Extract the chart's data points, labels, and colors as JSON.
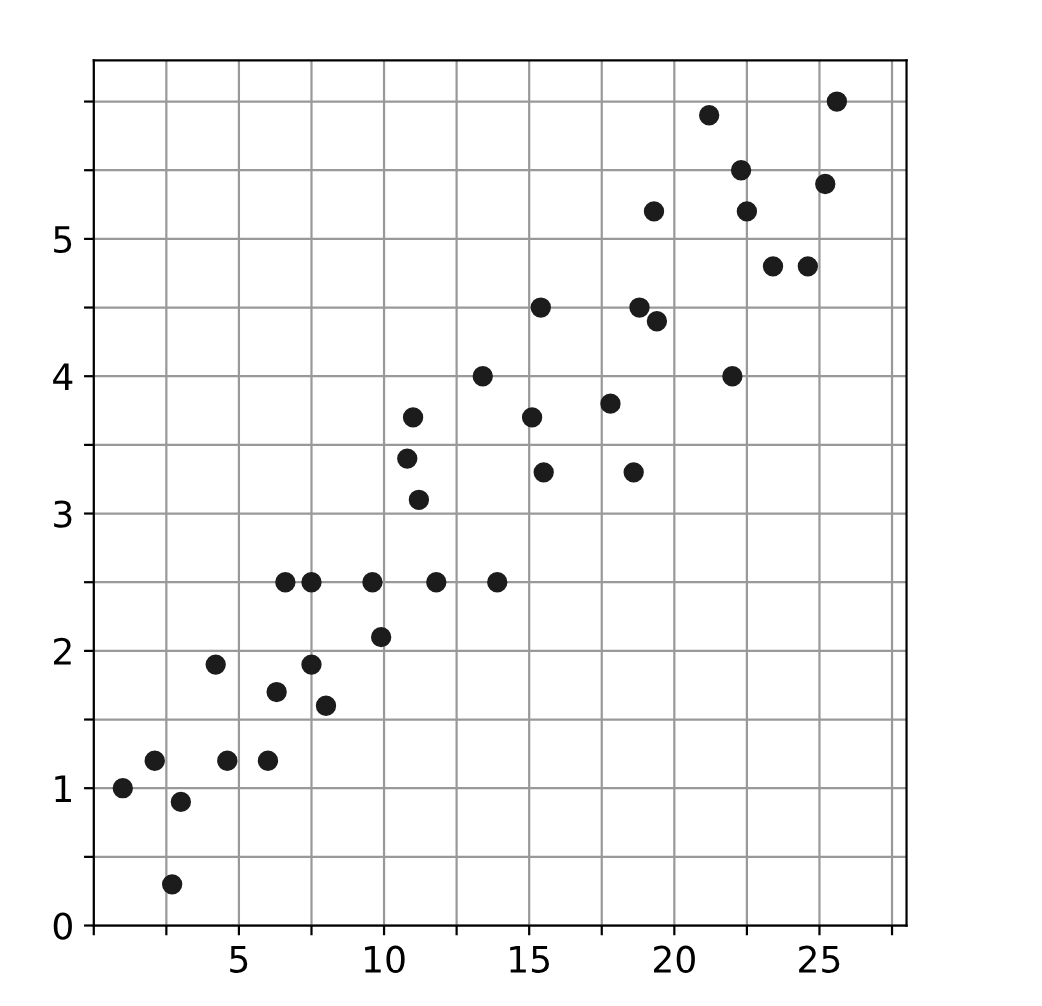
{
  "chart_data": {
    "type": "scatter",
    "color": "#1c1c1c",
    "marker": "circle",
    "grid": true,
    "x": [
      2.7,
      1.0,
      2.1,
      3.0,
      4.6,
      6.0,
      4.2,
      6.3,
      7.5,
      8.0,
      6.6,
      7.5,
      9.6,
      9.9,
      11.8,
      13.9,
      11.2,
      10.8,
      11.0,
      13.4,
      15.5,
      15.1,
      17.8,
      18.6,
      15.4,
      18.8,
      19.4,
      19.3,
      22.0,
      21.2,
      22.3,
      22.5,
      23.4,
      24.6,
      25.2,
      25.6
    ],
    "values": [
      0.3,
      1.0,
      1.2,
      0.9,
      1.2,
      1.2,
      1.9,
      1.7,
      1.9,
      1.6,
      2.5,
      2.5,
      2.5,
      2.1,
      2.5,
      2.5,
      3.1,
      3.4,
      3.7,
      4.0,
      3.3,
      3.7,
      3.8,
      3.3,
      4.5,
      4.5,
      4.4,
      5.2,
      4.0,
      5.9,
      5.5,
      5.2,
      4.8,
      4.8,
      5.4,
      6.0
    ],
    "xlim": [
      0,
      28
    ],
    "ylim": [
      0,
      6.3
    ],
    "xticks": [
      {
        "value": 0,
        "label": null
      },
      {
        "value": 2.5,
        "label": null
      },
      5,
      {
        "value": 7.5,
        "label": null
      },
      10,
      {
        "value": 12.5,
        "label": null
      },
      15,
      {
        "value": 17.5,
        "label": null
      },
      20,
      {
        "value": 22.5,
        "label": null
      },
      25,
      {
        "value": 27.5,
        "label": null
      }
    ],
    "yticks": [
      0,
      {
        "value": 0.5,
        "label": null
      },
      1,
      {
        "value": 1.5,
        "label": null
      },
      2,
      {
        "value": 2.5,
        "label": null
      },
      3,
      {
        "value": 3.5,
        "label": null
      },
      4,
      {
        "value": 4.5,
        "label": null
      },
      5,
      {
        "value": 5.5,
        "label": null
      },
      {
        "value": 6,
        "label": null
      }
    ]
  }
}
